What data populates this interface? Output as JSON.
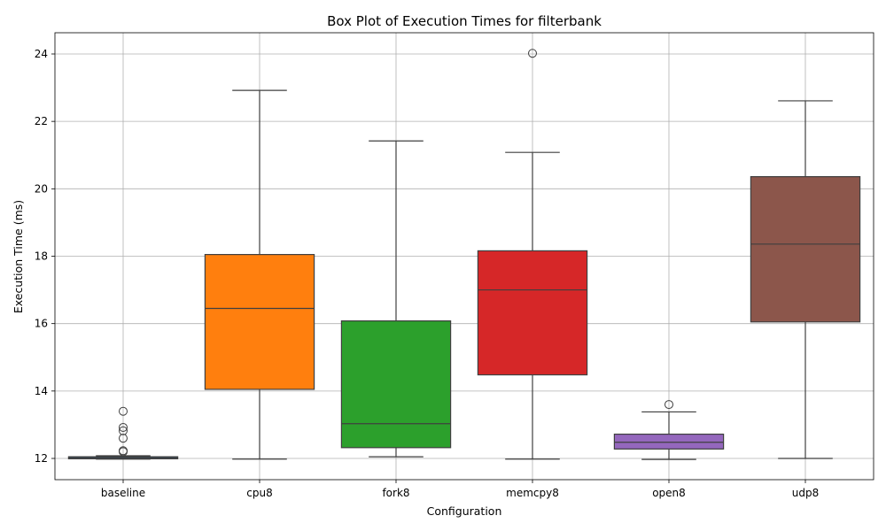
{
  "chart_data": {
    "type": "box",
    "title": "Box Plot of Execution Times for filterbank",
    "xlabel": "Configuration",
    "ylabel": "Execution Time (ms)",
    "ylim": [
      11.37,
      24.63
    ],
    "yticks": [
      12,
      14,
      16,
      18,
      20,
      22,
      24
    ],
    "grid": true,
    "categories": [
      "baseline",
      "cpu8",
      "fork8",
      "memcpy8",
      "open8",
      "udp8"
    ],
    "series": [
      {
        "category": "baseline",
        "color": "#1f77b4",
        "whisker_low": 11.98,
        "q1": 11.99,
        "median": 12.02,
        "q3": 12.05,
        "whisker_high": 12.08,
        "outliers": [
          12.2,
          12.23,
          12.6,
          12.82,
          12.92,
          13.4
        ]
      },
      {
        "category": "cpu8",
        "color": "#ff7f0e",
        "whisker_low": 11.98,
        "q1": 14.05,
        "median": 16.45,
        "q3": 18.05,
        "whisker_high": 22.92,
        "outliers": []
      },
      {
        "category": "fork8",
        "color": "#2ca02c",
        "whisker_low": 12.05,
        "q1": 12.32,
        "median": 13.03,
        "q3": 16.08,
        "whisker_high": 21.42,
        "outliers": []
      },
      {
        "category": "memcpy8",
        "color": "#d62728",
        "whisker_low": 11.98,
        "q1": 14.48,
        "median": 17.0,
        "q3": 18.16,
        "whisker_high": 21.08,
        "outliers": [
          24.02
        ]
      },
      {
        "category": "open8",
        "color": "#9467bd",
        "whisker_low": 11.97,
        "q1": 12.28,
        "median": 12.48,
        "q3": 12.72,
        "whisker_high": 13.38,
        "outliers": [
          13.6
        ]
      },
      {
        "category": "udp8",
        "color": "#8c564b",
        "whisker_low": 12.0,
        "q1": 16.05,
        "median": 18.36,
        "q3": 20.36,
        "whisker_high": 22.61,
        "outliers": []
      }
    ]
  }
}
